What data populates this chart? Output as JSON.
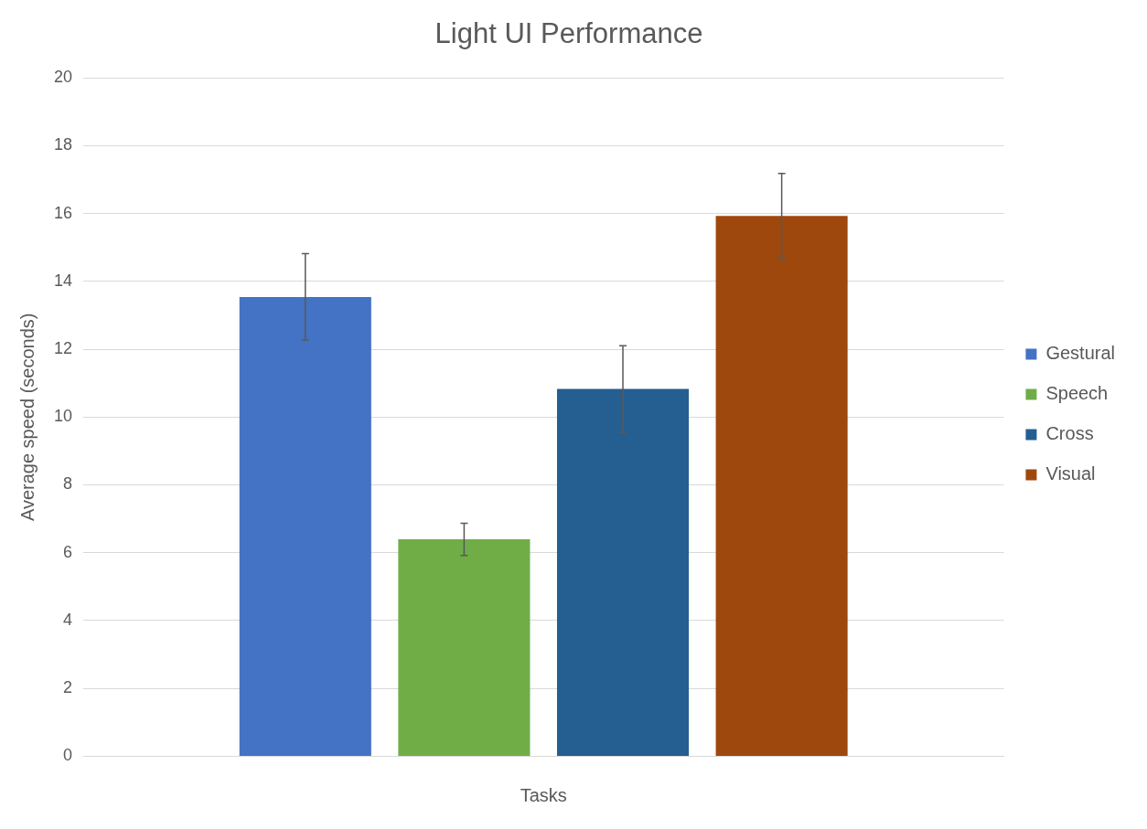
{
  "chart_data": {
    "type": "bar",
    "title": "Light UI Performance",
    "xlabel": "Tasks",
    "ylabel": "Average speed (seconds)",
    "categories": [
      null
    ],
    "series": [
      {
        "name": "Gestural",
        "color": "#4472c4",
        "values": [
          13.54
        ],
        "errors": [
          [
            12.27,
            14.82
          ]
        ]
      },
      {
        "name": "Speech",
        "color": "#70ad47",
        "values": [
          6.4
        ],
        "errors": [
          [
            5.92,
            6.87
          ]
        ]
      },
      {
        "name": "Cross",
        "color": "#255e91",
        "values": [
          10.83
        ],
        "errors": [
          [
            9.55,
            12.1
          ]
        ]
      },
      {
        "name": "Visual",
        "color": "#9e480e",
        "values": [
          15.93
        ],
        "errors": [
          [
            14.68,
            17.18
          ]
        ]
      }
    ],
    "ylim": [
      0,
      20
    ],
    "yticks": [
      0,
      2,
      4,
      6,
      8,
      10,
      12,
      14,
      16,
      18,
      20
    ],
    "grid": "y",
    "legend": "right"
  }
}
